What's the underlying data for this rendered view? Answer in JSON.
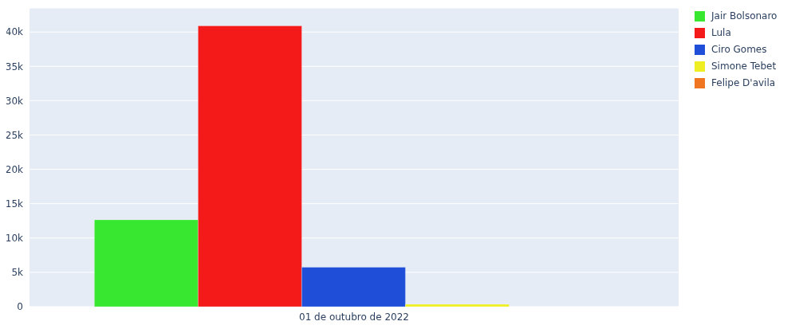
{
  "chart_data": {
    "type": "bar",
    "categories": [
      "01 de outubro de 2022"
    ],
    "series": [
      {
        "name": "Jair Bolsonaro",
        "color": "#38e72f",
        "values": [
          12650
        ]
      },
      {
        "name": "Lula",
        "color": "#f41a1a",
        "values": [
          40900
        ]
      },
      {
        "name": "Ciro Gomes",
        "color": "#1f4fd8",
        "values": [
          5750
        ]
      },
      {
        "name": "Simone Tebet",
        "color": "#eeee22",
        "values": [
          350
        ]
      },
      {
        "name": "Felipe D'avila",
        "color": "#ef7520",
        "values": [
          0
        ]
      }
    ],
    "ylim": [
      0,
      43500
    ],
    "yticks": [
      {
        "value": 0,
        "label": "0"
      },
      {
        "value": 5000,
        "label": "5k"
      },
      {
        "value": 10000,
        "label": "10k"
      },
      {
        "value": 15000,
        "label": "15k"
      },
      {
        "value": 20000,
        "label": "20k"
      },
      {
        "value": 25000,
        "label": "25k"
      },
      {
        "value": 30000,
        "label": "30k"
      },
      {
        "value": 35000,
        "label": "35k"
      },
      {
        "value": 40000,
        "label": "40k"
      }
    ],
    "grid": "y",
    "legend": "top right"
  }
}
